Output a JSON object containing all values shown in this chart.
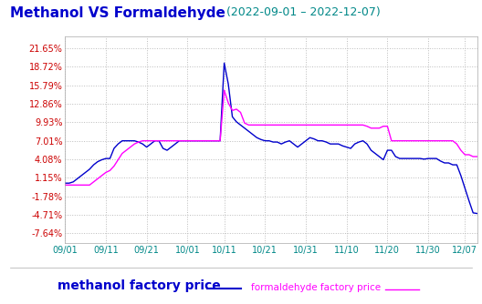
{
  "title": "Methanol VS Formaldehyde",
  "date_range": "(2022-09-01 – 2022-12-07)",
  "title_color": "#0000cc",
  "date_color": "#008888",
  "yticks": [
    21.65,
    18.72,
    15.79,
    12.86,
    9.93,
    7.01,
    4.08,
    1.15,
    -1.78,
    -4.71,
    -7.64
  ],
  "ytick_color": "#cc0000",
  "xtick_labels": [
    "09/01",
    "09/11",
    "09/21",
    "10/01",
    "10/11",
    "10/21",
    "10/31",
    "11/10",
    "11/20",
    "11/30",
    "12/07"
  ],
  "xtick_color": "#008888",
  "grid_color": "#bbbbbb",
  "bg_color": "#ffffff",
  "methanol_color": "#0000cc",
  "formaldehyde_color": "#ff00ff",
  "legend_methanol_label": "methanol factory price",
  "legend_formaldehyde_label": "formaldehyde factory price",
  "methanol_data": [
    0.3,
    0.3,
    0.5,
    1.0,
    1.5,
    2.0,
    2.5,
    3.2,
    3.7,
    4.0,
    4.2,
    4.2,
    5.8,
    6.5,
    7.0,
    7.0,
    7.0,
    7.0,
    6.8,
    6.5,
    6.0,
    6.5,
    7.0,
    7.0,
    5.8,
    5.5,
    6.0,
    6.5,
    7.0,
    7.0,
    7.0,
    7.0,
    7.0,
    7.0,
    7.0,
    7.0,
    7.0,
    7.0,
    7.0,
    19.3,
    16.0,
    10.8,
    10.0,
    9.5,
    9.0,
    8.5,
    8.0,
    7.5,
    7.2,
    7.0,
    7.0,
    6.8,
    6.8,
    6.5,
    6.8,
    7.0,
    6.5,
    6.0,
    6.5,
    7.0,
    7.5,
    7.3,
    7.0,
    7.0,
    6.8,
    6.5,
    6.5,
    6.5,
    6.2,
    6.0,
    5.8,
    6.5,
    6.8,
    7.0,
    6.5,
    5.5,
    5.0,
    4.5,
    4.0,
    5.5,
    5.5,
    4.5,
    4.2,
    4.2,
    4.2,
    4.2,
    4.2,
    4.2,
    4.1,
    4.2,
    4.2,
    4.2,
    3.8,
    3.5,
    3.5,
    3.2,
    3.2,
    1.5,
    -0.5,
    -2.5,
    -4.4,
    -4.5
  ],
  "formaldehyde_data": [
    0.0,
    0.0,
    0.0,
    0.0,
    0.0,
    0.0,
    0.0,
    0.5,
    1.0,
    1.5,
    2.0,
    2.3,
    3.0,
    4.0,
    5.0,
    5.5,
    6.0,
    6.5,
    6.8,
    7.0,
    7.0,
    7.0,
    7.0,
    7.0,
    7.0,
    7.0,
    7.0,
    7.0,
    7.0,
    7.0,
    7.0,
    7.0,
    7.0,
    7.0,
    7.0,
    7.0,
    7.0,
    7.0,
    7.0,
    15.0,
    13.0,
    11.8,
    12.0,
    11.5,
    9.8,
    9.5,
    9.5,
    9.5,
    9.5,
    9.5,
    9.5,
    9.5,
    9.5,
    9.5,
    9.5,
    9.5,
    9.5,
    9.5,
    9.5,
    9.5,
    9.5,
    9.5,
    9.5,
    9.5,
    9.5,
    9.5,
    9.5,
    9.5,
    9.5,
    9.5,
    9.5,
    9.5,
    9.5,
    9.5,
    9.3,
    9.0,
    9.0,
    9.0,
    9.3,
    9.3,
    7.0,
    7.0,
    7.0,
    7.0,
    7.0,
    7.0,
    7.0,
    7.0,
    7.0,
    7.0,
    7.0,
    7.0,
    7.0,
    7.0,
    7.0,
    7.0,
    6.5,
    5.5,
    4.8,
    4.8,
    4.5,
    4.5
  ]
}
